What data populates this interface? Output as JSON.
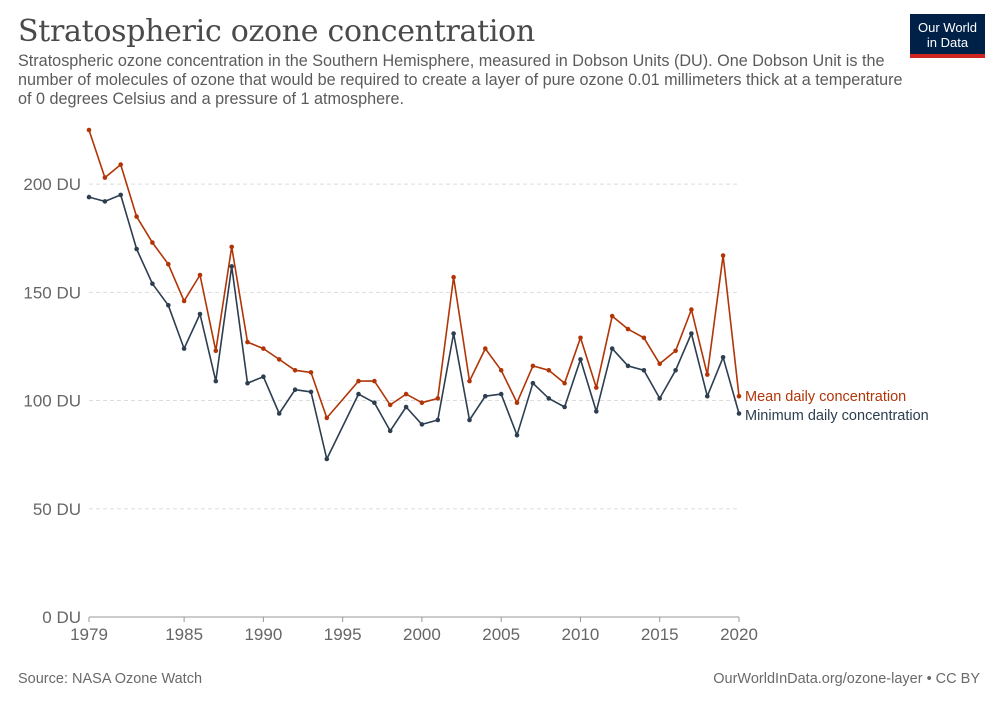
{
  "header": {
    "title": "Stratospheric ozone concentration",
    "subtitle": "Stratospheric ozone concentration in the Southern Hemisphere, measured in Dobson Units (DU). One Dobson Unit is the number of molecules of ozone that would be required to create a layer of pure ozone 0.01 millimeters thick at a temperature of 0 degrees Celsius and a pressure of 1 atmosphere."
  },
  "logo": {
    "line1": "Our World",
    "line2": "in Data",
    "bg_color": "#002147",
    "accent_color": "#ce261e"
  },
  "footer": {
    "source": "Source: NASA Ozone Watch",
    "link": "OurWorldInData.org/ozone-layer • CC BY"
  },
  "chart_data": {
    "type": "line",
    "x": [
      1979,
      1980,
      1981,
      1982,
      1983,
      1984,
      1985,
      1986,
      1987,
      1988,
      1989,
      1990,
      1991,
      1992,
      1993,
      1994,
      1996,
      1997,
      1998,
      1999,
      2000,
      2001,
      2002,
      2003,
      2004,
      2005,
      2006,
      2007,
      2008,
      2009,
      2010,
      2011,
      2012,
      2013,
      2014,
      2015,
      2016,
      2017,
      2018,
      2019,
      2020
    ],
    "series": [
      {
        "name": "Mean daily concentration",
        "color": "#b13507",
        "values": [
          225,
          203,
          209,
          185,
          173,
          163,
          146,
          158,
          123,
          171,
          127,
          124,
          119,
          114,
          113,
          92,
          109,
          109,
          98,
          103,
          99,
          101,
          157,
          109,
          124,
          114,
          99,
          116,
          114,
          108,
          129,
          106,
          139,
          133,
          129,
          117,
          123,
          142,
          112,
          167,
          102
        ]
      },
      {
        "name": "Minimum daily concentration",
        "color": "#2c3e50",
        "values": [
          194,
          192,
          195,
          170,
          154,
          144,
          124,
          140,
          109,
          162,
          108,
          111,
          94,
          105,
          104,
          73,
          103,
          99,
          86,
          97,
          89,
          91,
          131,
          91,
          102,
          103,
          84,
          108,
          101,
          97,
          119,
          95,
          124,
          116,
          114,
          101,
          114,
          131,
          102,
          120,
          94
        ]
      }
    ],
    "y_unit_suffix": " DU",
    "yticks": [
      0,
      50,
      100,
      150,
      200
    ],
    "xtick_labels": [
      "1979",
      "1985",
      "1990",
      "1995",
      "2000",
      "2005",
      "2010",
      "2015",
      "2020"
    ],
    "xlim": [
      1979,
      2020
    ],
    "ylim": [
      0,
      225
    ],
    "grid": "horizontal-dashed",
    "legend": "right-end-labels"
  }
}
